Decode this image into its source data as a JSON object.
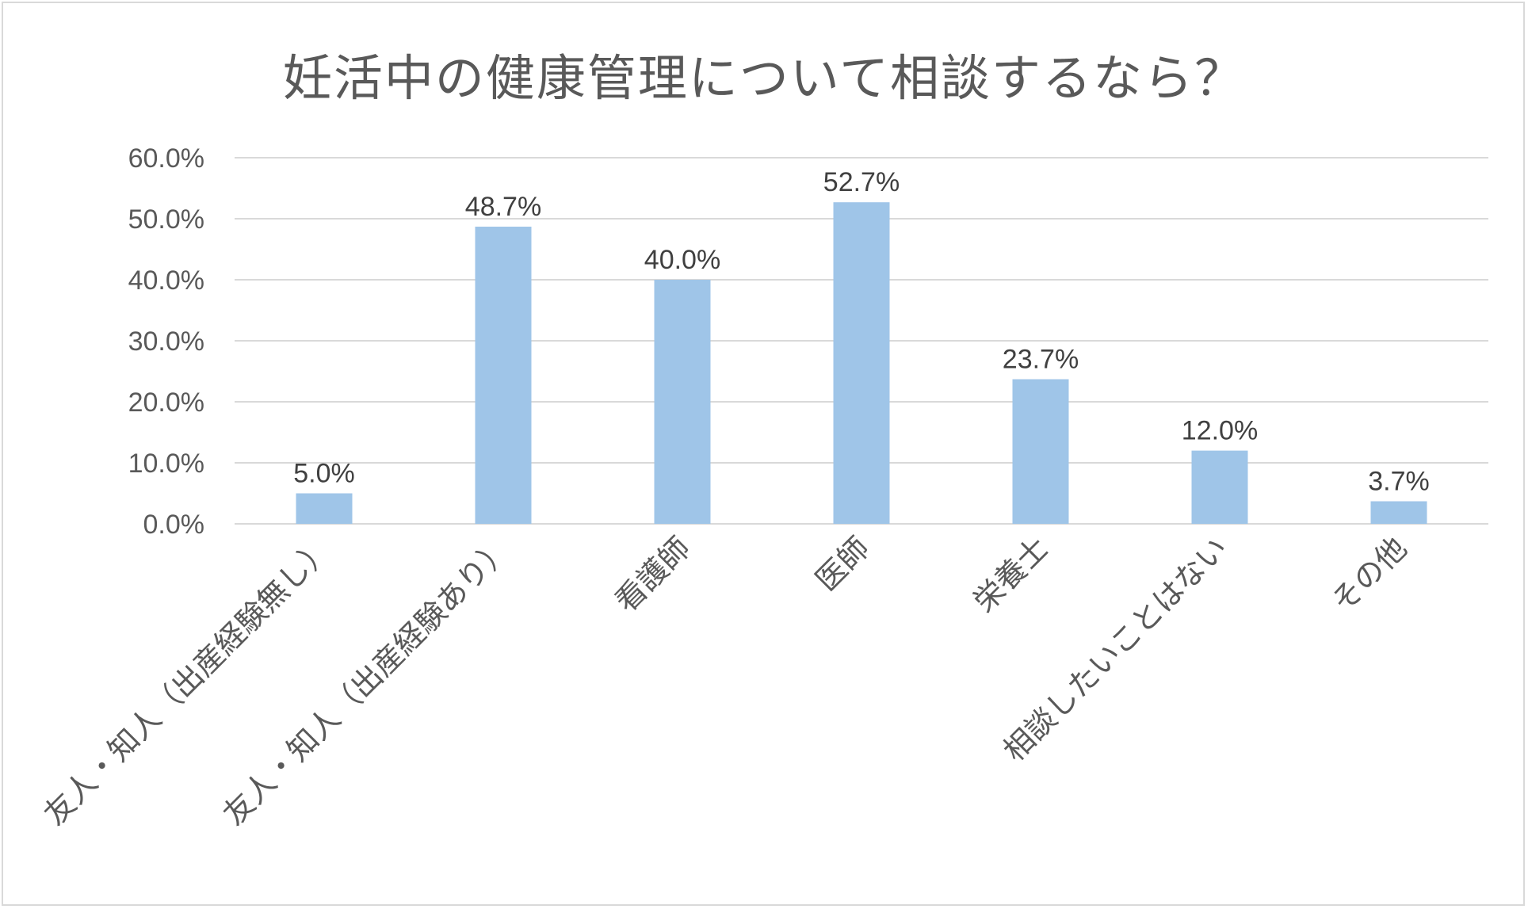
{
  "chart_data": {
    "type": "bar",
    "title": "妊活中の健康管理について相談するなら？",
    "xlabel": "",
    "ylabel": "",
    "categories": [
      "友人・知人（出産経験無し）",
      "友人・知人（出産経験あり）",
      "看護師",
      "医師",
      "栄養士",
      "相談したいことはない",
      "その他"
    ],
    "values": [
      5.0,
      48.7,
      40.0,
      52.7,
      23.7,
      12.0,
      3.7
    ],
    "data_labels": [
      "5.0%",
      "48.7%",
      "40.0%",
      "52.7%",
      "23.7%",
      "12.0%",
      "3.7%"
    ],
    "ylim": [
      0,
      60
    ],
    "yticks": [
      "0.0%",
      "10.0%",
      "20.0%",
      "30.0%",
      "40.0%",
      "50.0%",
      "60.0%"
    ],
    "grid": true,
    "legend": "none",
    "bar_color": "#9fc5e8",
    "grid_color": "#d9d9d9"
  }
}
